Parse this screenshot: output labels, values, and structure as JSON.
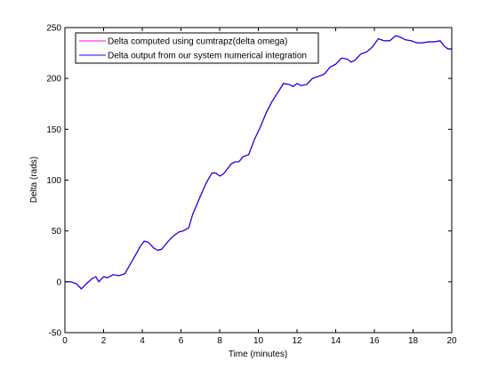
{
  "chart_data": {
    "type": "line",
    "title": "",
    "xlabel": "Time (minutes)",
    "ylabel": "Delta (rads)",
    "xlim": [
      0,
      20
    ],
    "ylim": [
      -50,
      250
    ],
    "xticks": [
      0,
      2,
      4,
      6,
      8,
      10,
      12,
      14,
      16,
      18,
      20
    ],
    "yticks": [
      -50,
      0,
      50,
      100,
      150,
      200,
      250
    ],
    "grid": false,
    "legend_position": "top-left",
    "series": [
      {
        "name": "Delta computed using cumtrapz(delta omega)",
        "color": "#ff00ff",
        "x": [
          0,
          0.3,
          0.6,
          0.85,
          1.1,
          1.4,
          1.6,
          1.75,
          1.9,
          2.0,
          2.2,
          2.5,
          2.8,
          3.1,
          3.4,
          3.7,
          3.9,
          4.1,
          4.3,
          4.6,
          4.8,
          5.0,
          5.3,
          5.6,
          5.9,
          6.1,
          6.4,
          6.6,
          6.8,
          7.0,
          7.3,
          7.6,
          7.8,
          8.0,
          8.2,
          8.4,
          8.6,
          8.8,
          9.0,
          9.2,
          9.5,
          9.8,
          10.1,
          10.4,
          10.7,
          11.0,
          11.3,
          11.6,
          11.8,
          12.0,
          12.2,
          12.5,
          12.8,
          13.1,
          13.4,
          13.7,
          14.0,
          14.3,
          14.6,
          14.8,
          15.0,
          15.3,
          15.6,
          15.9,
          16.2,
          16.5,
          16.8,
          17.1,
          17.3,
          17.6,
          17.9,
          18.2,
          18.5,
          18.8,
          19.1,
          19.4,
          19.6,
          19.8,
          20.0
        ],
        "values": [
          0,
          0,
          -2,
          -7,
          -2,
          3,
          5,
          0,
          3,
          5,
          4,
          7,
          6,
          8,
          18,
          28,
          35,
          40,
          39,
          33,
          31,
          32,
          39,
          45,
          49,
          50,
          53,
          66,
          75,
          84,
          97,
          107,
          107,
          104,
          106,
          111,
          116,
          118,
          118,
          123,
          125,
          140,
          152,
          166,
          177,
          186,
          195,
          194,
          192,
          195,
          193,
          194,
          200,
          202,
          204,
          211,
          214,
          220,
          219,
          216,
          218,
          224,
          226,
          231,
          239,
          237,
          237,
          242,
          241,
          238,
          237,
          235,
          235,
          236,
          236,
          237,
          232,
          229,
          229
        ]
      },
      {
        "name": "Delta output from our system numerical integration",
        "color": "#2200dd",
        "x": [
          0,
          0.3,
          0.6,
          0.85,
          1.1,
          1.4,
          1.6,
          1.75,
          1.9,
          2.0,
          2.2,
          2.5,
          2.8,
          3.1,
          3.4,
          3.7,
          3.9,
          4.1,
          4.3,
          4.6,
          4.8,
          5.0,
          5.3,
          5.6,
          5.9,
          6.1,
          6.4,
          6.6,
          6.8,
          7.0,
          7.3,
          7.6,
          7.8,
          8.0,
          8.2,
          8.4,
          8.6,
          8.8,
          9.0,
          9.2,
          9.5,
          9.8,
          10.1,
          10.4,
          10.7,
          11.0,
          11.3,
          11.6,
          11.8,
          12.0,
          12.2,
          12.5,
          12.8,
          13.1,
          13.4,
          13.7,
          14.0,
          14.3,
          14.6,
          14.8,
          15.0,
          15.3,
          15.6,
          15.9,
          16.2,
          16.5,
          16.8,
          17.1,
          17.3,
          17.6,
          17.9,
          18.2,
          18.5,
          18.8,
          19.1,
          19.4,
          19.6,
          19.8,
          20.0
        ],
        "values": [
          0,
          0,
          -2,
          -7,
          -2,
          3,
          5,
          0,
          3,
          5,
          4,
          7,
          6,
          8,
          18,
          28,
          35,
          40,
          39,
          33,
          31,
          32,
          39,
          45,
          49,
          50,
          53,
          66,
          75,
          84,
          97,
          107,
          107,
          104,
          106,
          111,
          116,
          118,
          118,
          123,
          125,
          140,
          152,
          166,
          177,
          186,
          195,
          194,
          192,
          195,
          193,
          194,
          200,
          202,
          204,
          211,
          214,
          220,
          219,
          216,
          218,
          224,
          226,
          231,
          239,
          237,
          237,
          242,
          241,
          238,
          237,
          235,
          235,
          236,
          236,
          237,
          232,
          229,
          229
        ]
      }
    ]
  }
}
